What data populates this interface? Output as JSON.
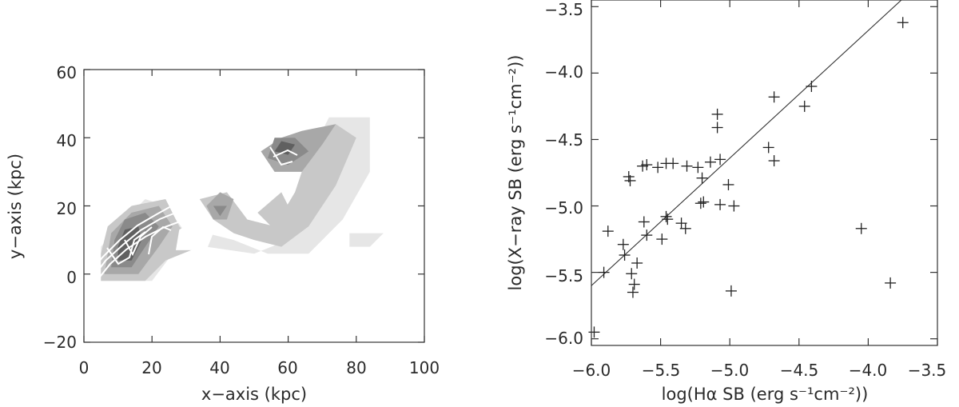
{
  "chart_data": [
    {
      "type": "heatmap",
      "title": "",
      "xlabel": "x−axis (kpc)",
      "ylabel": "y−axis (kpc)",
      "xlim": [
        0,
        100
      ],
      "ylim": [
        -20,
        60
      ],
      "x_ticks": [
        "0",
        "20",
        "40",
        "60",
        "80",
        "100"
      ],
      "y_ticks": [
        "−20",
        "0",
        "20",
        "40",
        "60"
      ],
      "x_tick_values": [
        0,
        20,
        40,
        60,
        80,
        100
      ],
      "y_tick_values": [
        -20,
        0,
        20,
        40,
        60
      ],
      "contour_levels": [
        {
          "level": 1,
          "color": "#e6e6e6",
          "polygons": [
            [
              [
                5,
                -2
              ],
              [
                20,
                -2
              ],
              [
                26,
                6
              ],
              [
                36,
                8
              ],
              [
                50,
                6
              ],
              [
                60,
                10
              ],
              [
                66,
                22
              ],
              [
                68,
                38
              ],
              [
                72,
                46
              ],
              [
                84,
                46
              ],
              [
                84,
                30
              ],
              [
                76,
                16
              ],
              [
                66,
                6
              ],
              [
                54,
                6
              ],
              [
                44,
                10
              ],
              [
                36,
                12
              ],
              [
                30,
                12
              ],
              [
                24,
                20
              ],
              [
                18,
                22
              ],
              [
                10,
                14
              ],
              [
                5,
                8
              ]
            ],
            [
              [
                78,
                12
              ],
              [
                88,
                12
              ],
              [
                84,
                8
              ],
              [
                78,
                8
              ]
            ]
          ]
        },
        {
          "level": 2,
          "color": "#c8c8c8",
          "polygons": [
            [
              [
                5,
                -2
              ],
              [
                18,
                -2
              ],
              [
                24,
                4
              ],
              [
                34,
                8
              ],
              [
                28,
                14
              ],
              [
                24,
                22
              ],
              [
                14,
                20
              ],
              [
                7,
                14
              ],
              [
                5,
                6
              ]
            ],
            [
              [
                34,
                22
              ],
              [
                42,
                24
              ],
              [
                48,
                16
              ],
              [
                56,
                14
              ],
              [
                62,
                24
              ],
              [
                66,
                36
              ],
              [
                74,
                44
              ],
              [
                80,
                40
              ],
              [
                74,
                26
              ],
              [
                66,
                14
              ],
              [
                58,
                8
              ],
              [
                50,
                10
              ],
              [
                44,
                12
              ],
              [
                38,
                16
              ]
            ],
            [
              [
                51,
                18
              ],
              [
                57,
                12
              ],
              [
                61,
                18
              ],
              [
                58,
                24
              ]
            ]
          ]
        },
        {
          "level": 3,
          "color": "#a8a8a8",
          "polygons": [
            [
              [
                6,
                0
              ],
              [
                16,
                0
              ],
              [
                22,
                8
              ],
              [
                26,
                14
              ],
              [
                22,
                20
              ],
              [
                14,
                18
              ],
              [
                8,
                12
              ]
            ],
            [
              [
                36,
                20
              ],
              [
                40,
                24
              ],
              [
                44,
                22
              ],
              [
                42,
                16
              ],
              [
                38,
                16
              ]
            ],
            [
              [
                52,
                36
              ],
              [
                56,
                30
              ],
              [
                64,
                30
              ],
              [
                70,
                38
              ],
              [
                74,
                44
              ],
              [
                64,
                42
              ],
              [
                58,
                40
              ]
            ]
          ]
        },
        {
          "level": 4,
          "color": "#8a8a8a",
          "polygons": [
            [
              [
                8,
                2
              ],
              [
                14,
                2
              ],
              [
                18,
                8
              ],
              [
                22,
                14
              ],
              [
                18,
                18
              ],
              [
                12,
                16
              ],
              [
                9,
                10
              ]
            ],
            [
              [
                38,
                20
              ],
              [
                42,
                20
              ],
              [
                40,
                17
              ]
            ],
            [
              [
                54,
                34
              ],
              [
                60,
                32
              ],
              [
                66,
                36
              ],
              [
                62,
                40
              ],
              [
                56,
                40
              ]
            ]
          ]
        },
        {
          "level": 5,
          "color": "#606060",
          "polygons": [
            [
              [
                10,
                4
              ],
              [
                14,
                4
              ],
              [
                17,
                10
              ],
              [
                16,
                14
              ],
              [
                12,
                13
              ],
              [
                10,
                8
              ]
            ],
            [
              [
                56,
                36
              ],
              [
                60,
                35
              ],
              [
                62,
                38
              ],
              [
                58,
                39
              ]
            ]
          ]
        }
      ]
    },
    {
      "type": "scatter",
      "title": "",
      "xlabel": "log(Hα SB (erg s⁻¹cm⁻²))",
      "ylabel": "log(X−ray SB (erg s⁻¹cm⁻²))",
      "xlim": [
        -6.0,
        -3.5
      ],
      "ylim": [
        -6.05,
        -3.45
      ],
      "x_ticks": [
        "−6.0",
        "−5.5",
        "−5.0",
        "−4.5",
        "−4.0",
        "−3.5"
      ],
      "y_ticks": [
        "−6.0",
        "−5.5",
        "−5.0",
        "−4.5",
        "−4.0",
        "−3.5"
      ],
      "x_tick_values": [
        -6.0,
        -5.5,
        -5.0,
        -4.5,
        -4.0,
        -3.5
      ],
      "y_tick_values": [
        -6.0,
        -5.5,
        -5.0,
        -4.5,
        -4.0,
        -3.5
      ],
      "marker": "plus",
      "x": [
        -5.98,
        -5.91,
        -5.88,
        -5.77,
        -5.76,
        -5.73,
        -5.72,
        -5.71,
        -5.7,
        -5.69,
        -5.67,
        -5.63,
        -5.62,
        -5.6,
        -5.6,
        -5.52,
        -5.49,
        -5.46,
        -5.46,
        -5.45,
        -5.41,
        -5.35,
        -5.32,
        -5.31,
        -5.23,
        -5.21,
        -5.2,
        -5.19,
        -5.14,
        -5.09,
        -5.09,
        -5.07,
        -5.07,
        -5.01,
        -4.99,
        -4.97,
        -4.72,
        -4.68,
        -4.68,
        -4.46,
        -4.41,
        -4.05,
        -3.84,
        -3.75
      ],
      "y": [
        -5.95,
        -5.5,
        -5.19,
        -5.29,
        -5.37,
        -4.78,
        -4.81,
        -5.51,
        -5.65,
        -5.59,
        -5.43,
        -4.7,
        -5.12,
        -4.69,
        -5.22,
        -4.71,
        -5.25,
        -4.68,
        -5.08,
        -5.1,
        -4.68,
        -5.13,
        -5.17,
        -4.7,
        -4.71,
        -4.98,
        -4.79,
        -4.97,
        -4.67,
        -4.31,
        -4.41,
        -4.99,
        -4.65,
        -4.84,
        -5.64,
        -5.0,
        -4.56,
        -4.18,
        -4.66,
        -4.25,
        -4.1,
        -5.17,
        -5.58,
        -3.62
      ],
      "fit_line": {
        "x": [
          -6.0,
          -3.75
        ],
        "y": [
          -5.6,
          -3.44
        ]
      }
    }
  ]
}
